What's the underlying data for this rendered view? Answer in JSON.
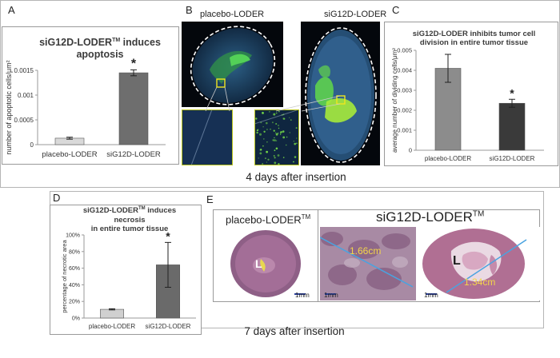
{
  "panels": {
    "A": {
      "letter": "A",
      "title_line1": "siG12D-LODER",
      "title_tm": "TM",
      "title_rest": " induces",
      "title_line2": "apoptosis"
    },
    "B": {
      "letter": "B",
      "label_left": "placebo-LODER",
      "label_right": "siG12D-LODER"
    },
    "C": {
      "letter": "C",
      "title_line1": "siG12D-LODER inhibits tumor cell",
      "title_line2": "division in entire tumor tissue"
    },
    "D": {
      "letter": "D",
      "title_line1": "siG12D-LODER",
      "title_tm": "TM",
      "title_rest": " induces",
      "title_line2": "necrosis",
      "title_line3": "in entire tumor tissue"
    },
    "E": {
      "letter": "E",
      "label_left": "placebo-LODER",
      "label_left_tm": "TM",
      "label_right": "siG12D-LODER",
      "label_right_tm": "TM",
      "lumen_label_1": "L",
      "lumen_label_2": "L",
      "measure_1": "1.66cm",
      "measure_2": "1.34cm",
      "scale_1": "1mm",
      "scale_2": "1mm",
      "scale_3": "1mm"
    }
  },
  "captions": {
    "top": "4 days after insertion",
    "bottom": "7 days after insertion"
  },
  "colors": {
    "placebo_bar": "#d9d9d9",
    "treated_bar_A": "#6e6e6e",
    "placebo_bar_C": "#8c8c8c",
    "treated_bar_C": "#3a3a3a",
    "placebo_bar_D": "#d0d0d0",
    "treated_bar_D": "#6a6a6a",
    "fluorescence_green": "#3fd63f",
    "highlight_yellow": "#f0e61e",
    "stain_pink": "#b27090",
    "measure_blue": "#4aa3e0",
    "measure_text": "#f3d64a"
  },
  "chart_data": [
    {
      "id": "A",
      "type": "bar",
      "title": "siG12D-LODER(TM) induces apoptosis",
      "categories": [
        "placebo-LODER",
        "siG12D-LODER"
      ],
      "values": [
        0.00013,
        0.00145
      ],
      "errors": [
        2e-05,
        6e-05
      ],
      "significance": [
        "",
        "*"
      ],
      "ylabel": "number of apoptotic cells/μm²",
      "ylim": [
        0,
        0.0015
      ],
      "yticks": [
        0,
        0.0005,
        0.001,
        0.0015
      ],
      "ytick_labels": [
        "0",
        "0.0005",
        "0.001",
        "0.0015"
      ]
    },
    {
      "id": "C",
      "type": "bar",
      "title": "siG12D-LODER inhibits tumor cell division in entire tumor tissue",
      "categories": [
        "placebo-LODER",
        "siG12D-LODER"
      ],
      "values": [
        0.0041,
        0.00235
      ],
      "errors": [
        0.0007,
        0.0002
      ],
      "significance": [
        "",
        "*"
      ],
      "ylabel": "average number of dividing cells/μm²",
      "ylim": [
        0,
        0.005
      ],
      "yticks": [
        0,
        0.001,
        0.002,
        0.003,
        0.004,
        0.005
      ],
      "ytick_labels": [
        "0",
        "0.001",
        "0.002",
        "0.003",
        "0.004",
        "0.005"
      ]
    },
    {
      "id": "D",
      "type": "bar",
      "title": "siG12D-LODER(TM) induces necrosis in entire tumor tissue",
      "categories": [
        "placebo-LODER",
        "siG12D-LODER"
      ],
      "values": [
        10.5,
        64
      ],
      "errors": [
        0.7,
        27
      ],
      "significance": [
        "",
        "*"
      ],
      "ylabel": "percentage of necrotic area",
      "ylim": [
        0,
        100
      ],
      "yticks": [
        0,
        20,
        40,
        60,
        80,
        100
      ],
      "ytick_labels": [
        "0%",
        "20%",
        "40%",
        "60%",
        "80%",
        "100%"
      ]
    }
  ]
}
